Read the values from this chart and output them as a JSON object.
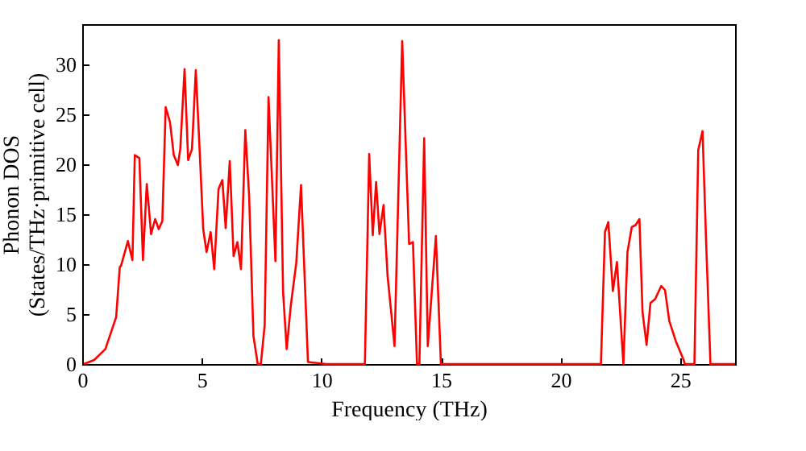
{
  "chart_data": {
    "type": "line",
    "xlabel": "Frequency (THz)",
    "ylabel": "Phonon DOS\n(States/THz·primitive cell)",
    "xlim": [
      0,
      27.3
    ],
    "ylim": [
      0,
      34
    ],
    "xticks": [
      0,
      5,
      10,
      15,
      20,
      25
    ],
    "yticks": [
      0,
      5,
      10,
      15,
      20,
      25,
      30
    ],
    "grid": false,
    "marker": "none",
    "line_style": "solid",
    "series": [
      {
        "color": "#ff0000",
        "x": [
          0.07,
          0.5,
          0.97,
          1.42,
          1.57,
          1.62,
          1.91,
          2.1,
          2.2,
          2.39,
          2.54,
          2.7,
          2.88,
          3.05,
          3.2,
          3.35,
          3.49,
          3.67,
          3.83,
          4.0,
          4.1,
          4.28,
          4.43,
          4.59,
          4.75,
          4.91,
          5.06,
          5.2,
          5.37,
          5.52,
          5.7,
          5.86,
          6.0,
          6.17,
          6.33,
          6.49,
          6.64,
          6.82,
          6.98,
          7.16,
          7.34,
          7.47,
          7.63,
          7.79,
          8.08,
          8.22,
          8.4,
          8.55,
          8.72,
          8.95,
          9.15,
          9.44,
          10.2,
          11.82,
          12.0,
          12.15,
          12.29,
          12.43,
          12.6,
          12.77,
          13.06,
          13.38,
          13.67,
          13.83,
          14.0,
          14.1,
          14.3,
          14.45,
          14.79,
          15.0,
          21.69,
          21.86,
          22.0,
          22.19,
          22.36,
          22.63,
          22.8,
          22.98,
          23.14,
          23.3,
          23.43,
          23.6,
          23.76,
          23.96,
          24.21,
          24.37,
          24.55,
          24.82,
          25.15,
          25.2,
          25.6,
          25.76,
          25.94,
          26.09,
          26.27,
          27.3
        ],
        "values": [
          0,
          0.4,
          1.5,
          4.7,
          9.7,
          9.8,
          12.3,
          10.4,
          20.9,
          20.6,
          10.4,
          18,
          13,
          14.5,
          13.5,
          14.3,
          25.7,
          24.2,
          20.9,
          19.9,
          21.5,
          29.5,
          20.4,
          21.5,
          29.4,
          21.4,
          13.5,
          11.2,
          13.2,
          9.5,
          17.5,
          18.4,
          13.6,
          20.3,
          10.8,
          12.2,
          9.5,
          23.4,
          16.8,
          2.8,
          0,
          0,
          3.9,
          26.7,
          10.3,
          32.4,
          7.2,
          1.5,
          5.8,
          10.1,
          17.9,
          0.2,
          0,
          0,
          21,
          12.9,
          18.2,
          13,
          15.9,
          8.8,
          1.8,
          32.3,
          12,
          12.2,
          0,
          0,
          22.6,
          1.8,
          12.8,
          0,
          0,
          13.2,
          14.2,
          7.3,
          10.2,
          0,
          11.2,
          13.7,
          13.9,
          14.5,
          5.2,
          1.9,
          6.1,
          6.5,
          7.8,
          7.4,
          4.3,
          2.3,
          0.4,
          0,
          0,
          21.4,
          23.3,
          12.2,
          0,
          0
        ]
      }
    ]
  }
}
